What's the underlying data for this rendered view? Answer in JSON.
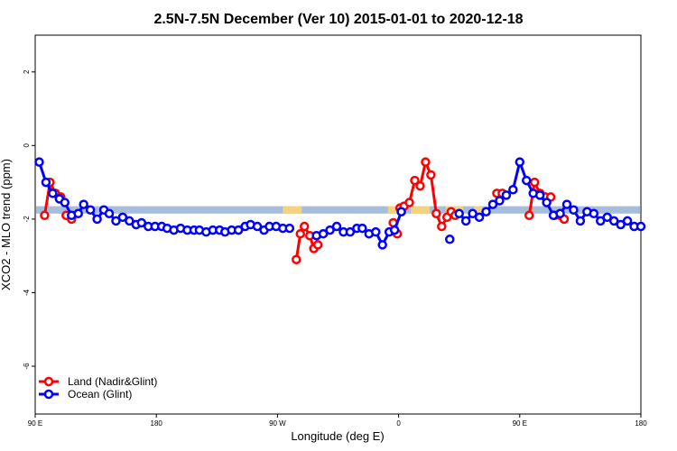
{
  "chart_data": {
    "type": "line",
    "title": "2.5N-7.5N December (Ver 10)   2015-01-01 to 2020-12-18",
    "xlabel": "Longitude (deg E)",
    "ylabel": "XCO2 - MLO trend (ppm)",
    "xlim": [
      90,
      540
    ],
    "ylim": [
      -7.3,
      3.0
    ],
    "x_ticks": [
      {
        "value": 90,
        "label": "90 E"
      },
      {
        "value": 180,
        "label": "180"
      },
      {
        "value": 270,
        "label": "90 W"
      },
      {
        "value": 360,
        "label": "0"
      },
      {
        "value": 450,
        "label": "90 E"
      },
      {
        "value": 540,
        "label": "180"
      }
    ],
    "y_ticks": [
      {
        "value": 2,
        "label": "2"
      },
      {
        "value": 0,
        "label": "0"
      },
      {
        "value": -2,
        "label": "-2"
      },
      {
        "value": -4,
        "label": "-4"
      },
      {
        "value": -6,
        "label": "-6"
      }
    ],
    "grid": false,
    "legend_position": "bottom-left",
    "surface_band": {
      "y_range": [
        -1.85,
        -1.65
      ],
      "ocean_color": "#a6bddb",
      "land_color": "#f5d37a",
      "land_segments": [
        [
          274,
          288
        ],
        [
          352,
          363
        ],
        [
          369,
          383
        ],
        [
          395,
          408
        ],
        [
          416,
          422
        ]
      ]
    },
    "series": [
      {
        "name": "Land (Nadir&Glint)",
        "color": "#ff0000",
        "segments": [
          {
            "x": [
              97,
              101,
              105,
              109
            ],
            "y": [
              -1.9,
              -1.0,
              -1.3,
              -1.4
            ]
          },
          {
            "x": [
              113,
              117
            ],
            "y": [
              -1.9,
              -2.0
            ]
          },
          {
            "x": [
              284,
              287,
              290,
              294,
              297,
              300
            ],
            "y": [
              -3.1,
              -2.4,
              -2.2,
              -2.45,
              -2.8,
              -2.7
            ]
          },
          {
            "x": [
              356,
              359
            ],
            "y": [
              -2.1,
              -2.4
            ]
          },
          {
            "x": [
              361,
              364,
              368,
              372,
              376,
              380,
              384,
              388,
              392,
              396
            ],
            "y": [
              -1.7,
              -1.65,
              -1.55,
              -0.95,
              -1.1,
              -0.45,
              -0.8,
              -1.85,
              -2.2,
              -1.95
            ]
          },
          {
            "x": [
              399,
              402
            ],
            "y": [
              -1.8,
              -1.9
            ]
          },
          {
            "x": [
              433,
              437
            ],
            "y": [
              -1.3,
              -1.3
            ]
          },
          {
            "x": [
              457,
              461,
              465,
              469,
              473
            ],
            "y": [
              -1.9,
              -1.0,
              -1.3,
              -1.4,
              -1.4
            ]
          },
          {
            "x": [
              476,
              480,
              483
            ],
            "y": [
              -1.9,
              -1.9,
              -2.0
            ]
          }
        ]
      },
      {
        "name": "Ocean (Glint)",
        "color": "#0000ff",
        "segments": [
          {
            "x": [
              93,
              98,
              103,
              108,
              112,
              117,
              122,
              126,
              131,
              136,
              141,
              145,
              150,
              155,
              160,
              165,
              169,
              174,
              179,
              184,
              188,
              193,
              198,
              203,
              208,
              212,
              217,
              222,
              227,
              231,
              236,
              241,
              246,
              250,
              255,
              260,
              264,
              269,
              274,
              279
            ],
            "y": [
              -0.45,
              -1.0,
              -1.3,
              -1.45,
              -1.55,
              -1.9,
              -1.85,
              -1.6,
              -1.75,
              -2.0,
              -1.75,
              -1.85,
              -2.05,
              -1.95,
              -2.05,
              -2.15,
              -2.1,
              -2.2,
              -2.2,
              -2.2,
              -2.25,
              -2.3,
              -2.25,
              -2.3,
              -2.3,
              -2.3,
              -2.35,
              -2.3,
              -2.3,
              -2.35,
              -2.3,
              -2.3,
              -2.2,
              -2.15,
              -2.2,
              -2.3,
              -2.2,
              -2.2,
              -2.25,
              -2.25
            ]
          },
          {
            "x": [
              299,
              304,
              309,
              314,
              319,
              324,
              329,
              333,
              338,
              343,
              348,
              353,
              357,
              362
            ],
            "y": [
              -2.45,
              -2.4,
              -2.3,
              -2.2,
              -2.35,
              -2.35,
              -2.25,
              -2.25,
              -2.4,
              -2.35,
              -2.7,
              -2.35,
              -2.3,
              -1.8
            ]
          },
          {
            "x": [
              398
            ],
            "y": [
              -2.55
            ]
          },
          {
            "x": [
              405,
              410,
              415,
              420,
              425,
              430,
              435,
              440,
              445,
              450,
              455,
              460,
              465,
              470,
              475,
              480,
              485,
              490,
              495,
              500,
              505,
              510,
              515,
              520,
              525,
              530,
              535,
              540
            ],
            "y": [
              -1.85,
              -2.05,
              -1.85,
              -1.95,
              -1.8,
              -1.6,
              -1.5,
              -1.35,
              -1.2,
              -0.45,
              -0.95,
              -1.3,
              -1.35,
              -1.55,
              -1.9,
              -1.85,
              -1.6,
              -1.75,
              -2.05,
              -1.8,
              -1.85,
              -2.05,
              -1.95,
              -2.05,
              -2.15,
              -2.05,
              -2.2,
              -2.2
            ]
          }
        ]
      }
    ]
  }
}
